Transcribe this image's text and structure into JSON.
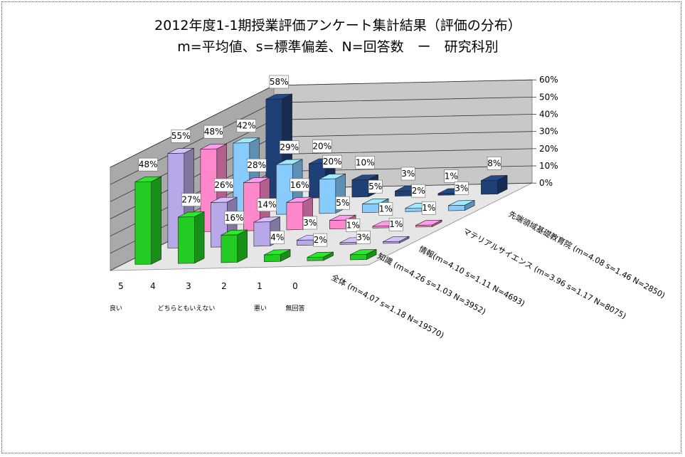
{
  "chart_data": {
    "type": "bar",
    "title_line1": "2012年度1-1期授業評価アンケート集計結果（評価の分布）",
    "title_line2": "m=平均値、s=標準偏差、N=回答数　ー　研究科別",
    "categories": [
      "5",
      "4",
      "3",
      "2",
      "1",
      "0"
    ],
    "category_descriptions": {
      "high": "良い",
      "mid": "どちらともいえない",
      "low": "悪い",
      "none": "無回答"
    },
    "zlim": [
      0,
      60
    ],
    "z_ticks": [
      "0%",
      "10%",
      "20%",
      "30%",
      "40%",
      "50%",
      "60%"
    ],
    "series": [
      {
        "name": "全体 (m=4.07 s=1.18 N=19570)",
        "values": [
          48,
          27,
          16,
          4,
          2,
          3
        ],
        "color": "#22cc22"
      },
      {
        "name": "知識 (m=4.26 s=1.03 N=3952)",
        "values": [
          55,
          26,
          14,
          3,
          1,
          1
        ],
        "color": "#b8a8e8"
      },
      {
        "name": "情報(m=4.10 s=1.11 N=4693)",
        "values": [
          48,
          28,
          16,
          5,
          1,
          1
        ],
        "color": "#ff88cc"
      },
      {
        "name": "マテリアルサイエンス (m=3.96 s=1.17 N=8075)",
        "values": [
          42,
          29,
          20,
          5,
          2,
          3
        ],
        "color": "#88ccff"
      },
      {
        "name": "先端領域基礎教育院 (m=4.08 s=1.46 N=2850)",
        "values": [
          58,
          20,
          10,
          3,
          1,
          8
        ],
        "color": "#1f3f77"
      }
    ]
  }
}
